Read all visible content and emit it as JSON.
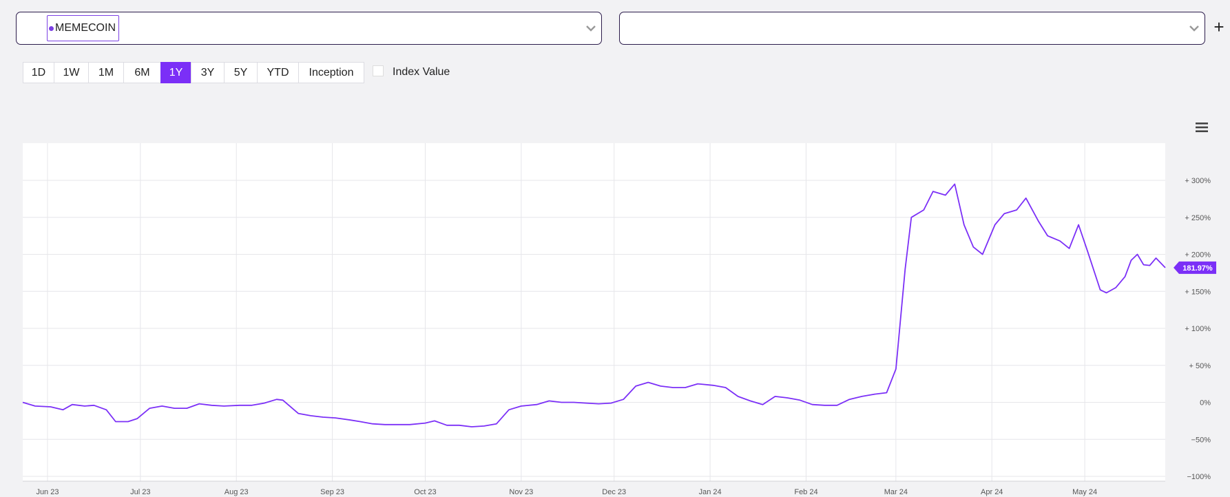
{
  "selectors": [
    {
      "tag_label": "MEMECOIN",
      "dot_color": "#7b3fe4"
    },
    {
      "tag_label": ""
    }
  ],
  "add_icon": "plus-icon",
  "ranges": [
    {
      "label": "1D"
    },
    {
      "label": "1W"
    },
    {
      "label": "1M"
    },
    {
      "label": "6M"
    },
    {
      "label": "1Y",
      "active": true
    },
    {
      "label": "3Y"
    },
    {
      "label": "5Y"
    },
    {
      "label": "YTD"
    },
    {
      "label": "Inception"
    }
  ],
  "index_value": {
    "label": "Index Value",
    "checked": false
  },
  "menu_icon": "hamburger-icon",
  "chart_data": {
    "type": "line",
    "x_labels": [
      "Jun 23",
      "Jul 23",
      "Aug 23",
      "Sep 23",
      "Oct 23",
      "Nov 23",
      "Dec 23",
      "Jan 24",
      "Feb 24",
      "Mar 24",
      "Apr 24",
      "May 24"
    ],
    "x_range": [
      "2023-05-24",
      "2024-05-27"
    ],
    "y_ticks": [
      "+ 300%",
      "+ 250%",
      "+ 200%",
      "+ 150%",
      "+ 100%",
      "+ 50%",
      "0%",
      "−50%",
      "−100%"
    ],
    "ylim": [
      -100,
      300
    ],
    "grid": true,
    "color": "#7b2ff7",
    "last_value_label": "181.97%",
    "series": [
      {
        "points": [
          [
            "2023-05-24",
            0
          ],
          [
            "2023-05-28",
            -5
          ],
          [
            "2023-06-02",
            -6
          ],
          [
            "2023-06-06",
            -10
          ],
          [
            "2023-06-09",
            -3
          ],
          [
            "2023-06-13",
            -5
          ],
          [
            "2023-06-16",
            -4
          ],
          [
            "2023-06-20",
            -10
          ],
          [
            "2023-06-23",
            -26
          ],
          [
            "2023-06-27",
            -26
          ],
          [
            "2023-06-30",
            -22
          ],
          [
            "2023-07-04",
            -8
          ],
          [
            "2023-07-08",
            -5
          ],
          [
            "2023-07-12",
            -8
          ],
          [
            "2023-07-16",
            -8
          ],
          [
            "2023-07-20",
            -2
          ],
          [
            "2023-07-24",
            -4
          ],
          [
            "2023-07-28",
            -5
          ],
          [
            "2023-08-02",
            -4
          ],
          [
            "2023-08-06",
            -4
          ],
          [
            "2023-08-10",
            -1
          ],
          [
            "2023-08-14",
            4
          ],
          [
            "2023-08-16",
            3
          ],
          [
            "2023-08-21",
            -15
          ],
          [
            "2023-08-25",
            -18
          ],
          [
            "2023-08-29",
            -20
          ],
          [
            "2023-09-02",
            -21
          ],
          [
            "2023-09-07",
            -24
          ],
          [
            "2023-09-10",
            -26
          ],
          [
            "2023-09-14",
            -29
          ],
          [
            "2023-09-18",
            -30
          ],
          [
            "2023-09-22",
            -30
          ],
          [
            "2023-09-26",
            -30
          ],
          [
            "2023-10-01",
            -28
          ],
          [
            "2023-10-04",
            -25
          ],
          [
            "2023-10-08",
            -31
          ],
          [
            "2023-10-12",
            -31
          ],
          [
            "2023-10-16",
            -33
          ],
          [
            "2023-10-20",
            -32
          ],
          [
            "2023-10-24",
            -29
          ],
          [
            "2023-10-28",
            -10
          ],
          [
            "2023-11-01",
            -5
          ],
          [
            "2023-11-06",
            -3
          ],
          [
            "2023-11-10",
            2
          ],
          [
            "2023-11-14",
            0
          ],
          [
            "2023-11-18",
            0
          ],
          [
            "2023-11-22",
            -1
          ],
          [
            "2023-11-26",
            -2
          ],
          [
            "2023-11-30",
            -1
          ],
          [
            "2023-12-04",
            4
          ],
          [
            "2023-12-08",
            22
          ],
          [
            "2023-12-12",
            27
          ],
          [
            "2023-12-16",
            22
          ],
          [
            "2023-12-20",
            20
          ],
          [
            "2023-12-24",
            20
          ],
          [
            "2023-12-28",
            25
          ],
          [
            "2024-01-02",
            23
          ],
          [
            "2024-01-06",
            20
          ],
          [
            "2024-01-10",
            8
          ],
          [
            "2024-01-14",
            2
          ],
          [
            "2024-01-18",
            -3
          ],
          [
            "2024-01-22",
            8
          ],
          [
            "2024-01-26",
            6
          ],
          [
            "2024-01-30",
            3
          ],
          [
            "2024-02-03",
            -3
          ],
          [
            "2024-02-07",
            -4
          ],
          [
            "2024-02-11",
            -4
          ],
          [
            "2024-02-15",
            4
          ],
          [
            "2024-02-19",
            8
          ],
          [
            "2024-02-23",
            11
          ],
          [
            "2024-02-27",
            13
          ],
          [
            "2024-03-01",
            45
          ],
          [
            "2024-03-04",
            180
          ],
          [
            "2024-03-06",
            250
          ],
          [
            "2024-03-10",
            260
          ],
          [
            "2024-03-13",
            285
          ],
          [
            "2024-03-17",
            280
          ],
          [
            "2024-03-20",
            295
          ],
          [
            "2024-03-23",
            240
          ],
          [
            "2024-03-26",
            210
          ],
          [
            "2024-03-29",
            200
          ],
          [
            "2024-04-02",
            240
          ],
          [
            "2024-04-05",
            255
          ],
          [
            "2024-04-09",
            260
          ],
          [
            "2024-04-12",
            276
          ],
          [
            "2024-04-16",
            245
          ],
          [
            "2024-04-19",
            225
          ],
          [
            "2024-04-23",
            218
          ],
          [
            "2024-04-26",
            208
          ],
          [
            "2024-04-29",
            240
          ],
          [
            "2024-05-02",
            203
          ],
          [
            "2024-05-06",
            152
          ],
          [
            "2024-05-08",
            148
          ],
          [
            "2024-05-11",
            155
          ],
          [
            "2024-05-14",
            170
          ],
          [
            "2024-05-16",
            192
          ],
          [
            "2024-05-18",
            200
          ],
          [
            "2024-05-20",
            186
          ],
          [
            "2024-05-22",
            185
          ],
          [
            "2024-05-24",
            195
          ],
          [
            "2024-05-27",
            181.97
          ]
        ]
      }
    ]
  }
}
